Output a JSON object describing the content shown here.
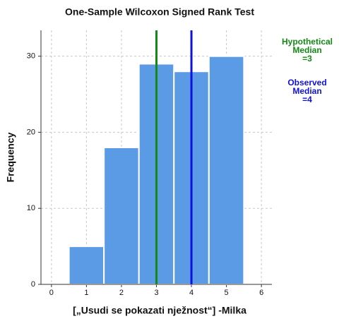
{
  "chart_data": {
    "type": "histogram",
    "title": "One-Sample Wilcoxon Signed Rank Test",
    "xlabel": "[„Usudi se pokazati nježnost“] -Milka",
    "ylabel": "Frequency",
    "bins": [
      0.5,
      1.5,
      2.5,
      3.5,
      4.5,
      5.5
    ],
    "values": [
      5,
      18,
      29,
      28,
      30
    ],
    "color": "#5b9be6",
    "xlim": [
      -0.3,
      6.3
    ],
    "xticks": [
      0,
      1,
      2,
      3,
      4,
      5,
      6
    ],
    "ylim": [
      0,
      33.4
    ],
    "yticks": [
      0,
      10,
      20,
      30
    ],
    "grid": true,
    "reference_lines": [
      {
        "label_lines": [
          "Hypothetical",
          "Median"
        ],
        "value": 3,
        "value_label": "=3",
        "color": "#138a13"
      },
      {
        "label_lines": [
          "Observed",
          "Median"
        ],
        "value": 4,
        "value_label": "=4",
        "color": "#1010e0"
      }
    ]
  }
}
